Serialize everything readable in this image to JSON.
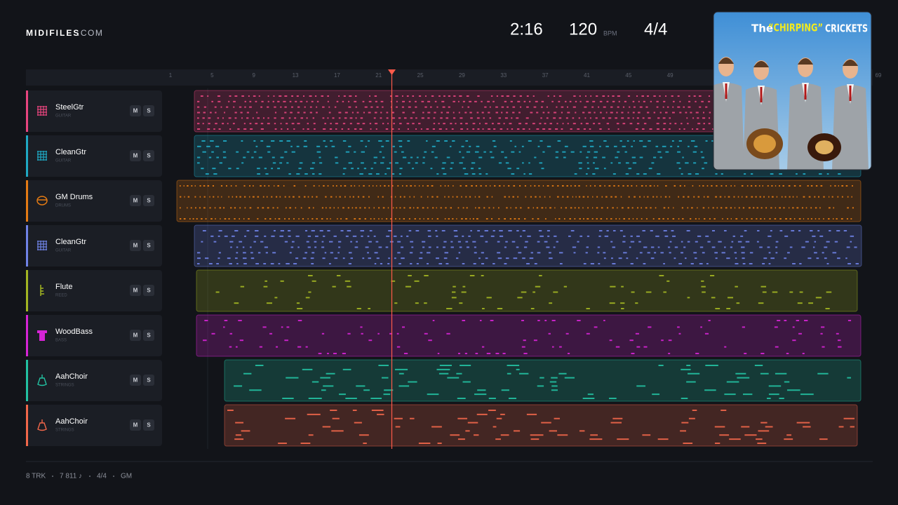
{
  "header": {
    "brand": "MIDIFILES",
    "domain": ".COM",
    "time": "2:16",
    "tempo": "120",
    "tempo_unit": "BPM",
    "meter": "4/4"
  },
  "ruler": {
    "bars": [
      1,
      5,
      9,
      13,
      17,
      21,
      25,
      29,
      33,
      37,
      41,
      45,
      49,
      69
    ]
  },
  "tracks": [
    {
      "name": "SteelGtr",
      "family": "GUITAR",
      "color": "#e8457f"
    },
    {
      "name": "CleanGtr",
      "family": "GUITAR",
      "color": "#1fa9c4"
    },
    {
      "name": "GM Drums",
      "family": "DRUMS",
      "color": "#e47b14"
    },
    {
      "name": "CleanGtr",
      "family": "GUITAR",
      "color": "#6f82e6"
    },
    {
      "name": "Flute",
      "family": "REED",
      "color": "#a3b622"
    },
    {
      "name": "WoodBass",
      "family": "BASS",
      "color": "#d624d6"
    },
    {
      "name": "AahChoir",
      "family": "STRINGS",
      "color": "#22c2a2"
    },
    {
      "name": "AahChoir",
      "family": "STRINGS",
      "color": "#f2674a"
    }
  ],
  "buttons": {
    "mute": "M",
    "solo": "S"
  },
  "album": {
    "the": "The",
    "title": "“CHIRPING”",
    "band": "CRICKETS"
  },
  "footer": [
    "8 TRK",
    "7 811 ♪",
    "4/4",
    "GM"
  ]
}
